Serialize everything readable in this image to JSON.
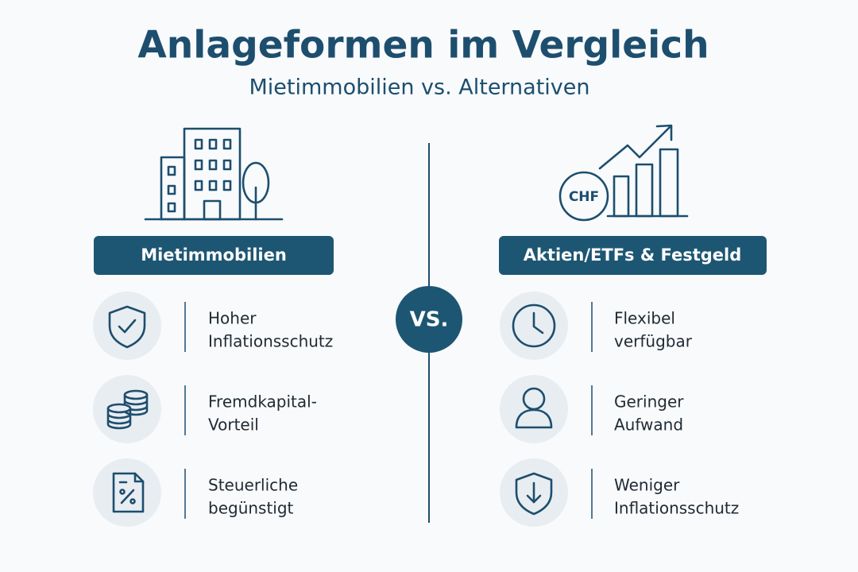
{
  "header": {
    "title": "Anlageformen im Vergleich",
    "subtitle": "Mietimmobilien vs. Alternativen"
  },
  "vs": "VS.",
  "left": {
    "label": "Mietimmobilien",
    "items": [
      [
        "Hoher",
        "Inflationsschutz"
      ],
      [
        "Fremdkapital-",
        "Vorteil"
      ],
      [
        "Steuerliche",
        "begünstigt"
      ]
    ]
  },
  "right": {
    "label": "Aktien/ETFs & Festgeld",
    "icon_label": "CHF",
    "items": [
      [
        "Flexibel",
        "verfügbar"
      ],
      [
        "Geringer",
        "Aufwand"
      ],
      [
        "Weniger",
        "Inflationsschutz"
      ]
    ]
  }
}
